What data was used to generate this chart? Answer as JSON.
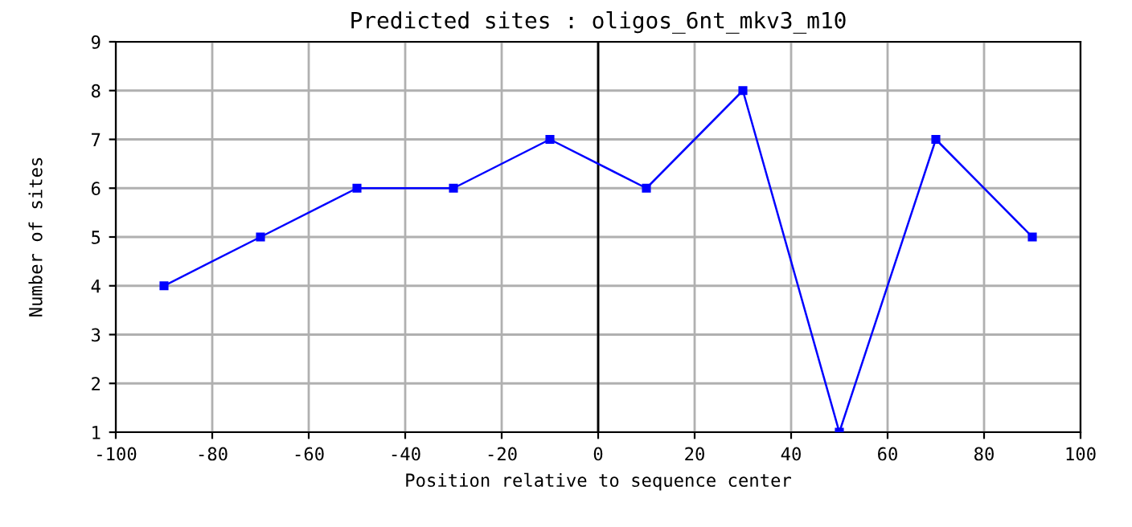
{
  "chart_data": {
    "type": "line",
    "title": "Predicted sites : oligos_6nt_mkv3_m10",
    "xlabel": "Position relative to sequence center",
    "ylabel": "Number of sites",
    "x": [
      -90,
      -70,
      -50,
      -30,
      -10,
      10,
      30,
      50,
      70,
      90
    ],
    "series": [
      {
        "color": "#0000ff",
        "values": [
          4,
          5,
          6,
          6,
          7,
          6,
          8,
          1,
          7,
          5
        ]
      }
    ],
    "xlim": [
      -100,
      100
    ],
    "ylim": [
      1,
      9
    ],
    "xticks": [
      -100,
      -80,
      -60,
      -40,
      -20,
      0,
      20,
      40,
      60,
      80,
      100
    ],
    "yticks": [
      1,
      2,
      3,
      4,
      5,
      6,
      7,
      8,
      9
    ],
    "grid": true,
    "marker": "square",
    "line_style": "solid",
    "ref_lines": [
      {
        "axis": "x",
        "value": 0,
        "color": "#000000"
      }
    ]
  }
}
